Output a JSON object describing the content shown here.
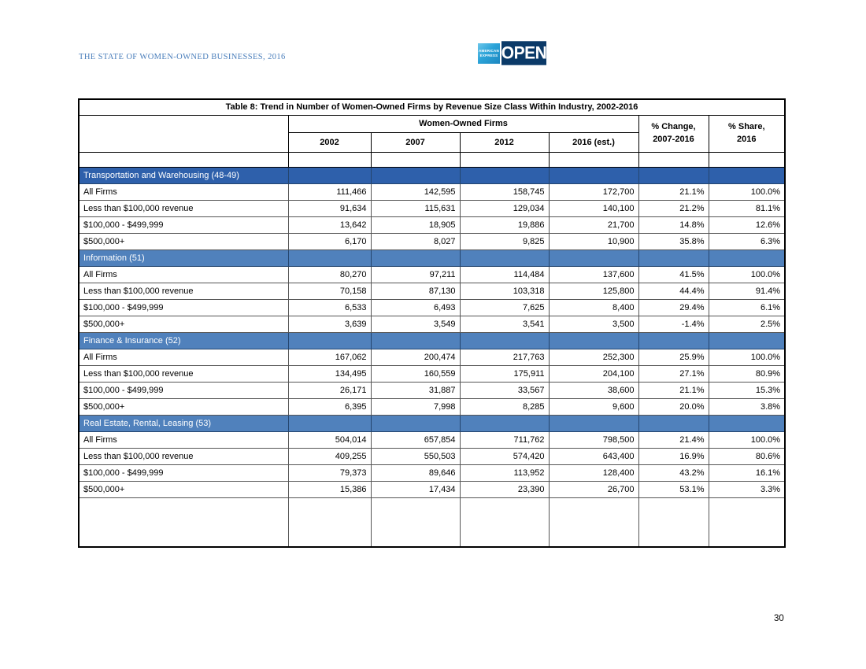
{
  "page": {
    "header_title": "THE STATE OF WOMEN-OWNED BUSINESSES, 2016",
    "page_number": "30",
    "logo": {
      "amex_line1": "AMERICAN",
      "amex_line2": "EXPRESS",
      "open_label": "OPEN"
    }
  },
  "colors": {
    "header_title_blue": "#4A7EBB",
    "section_dark_blue": "#2E60AB",
    "section_light_blue": "#5081BC",
    "amex_blue": "#2BA3D8",
    "open_navy": "#0B3A68"
  },
  "table": {
    "title": "Table 8: Trend in Number of Women-Owned Firms by Revenue Size Class Within Industry, 2002-2016",
    "group_header": "Women-Owned Firms",
    "year_headers": [
      "2002",
      "2007",
      "2012",
      "2016 (est.)"
    ],
    "pct_change_header": "% Change,\n2007-2016",
    "pct_share_header": "% Share,\n2016",
    "sections": [
      {
        "label": "Transportation and Warehousing (48-49)",
        "accent": "dark",
        "rows": [
          [
            "All Firms",
            "111,466",
            "142,595",
            "158,745",
            "172,700",
            "21.1%",
            "100.0%"
          ],
          [
            "Less than $100,000 revenue",
            "91,634",
            "115,631",
            "129,034",
            "140,100",
            "21.2%",
            "81.1%"
          ],
          [
            "$100,000 - $499,999",
            "13,642",
            "18,905",
            "19,886",
            "21,700",
            "14.8%",
            "12.6%"
          ],
          [
            "$500,000+",
            "6,170",
            "8,027",
            "9,825",
            "10,900",
            "35.8%",
            "6.3%"
          ]
        ]
      },
      {
        "label": "Information (51)",
        "accent": "light",
        "rows": [
          [
            "All Firms",
            "80,270",
            "97,211",
            "114,484",
            "137,600",
            "41.5%",
            "100.0%"
          ],
          [
            "Less than $100,000 revenue",
            "70,158",
            "87,130",
            "103,318",
            "125,800",
            "44.4%",
            "91.4%"
          ],
          [
            "$100,000 - $499,999",
            "6,533",
            "6,493",
            "7,625",
            "8,400",
            "29.4%",
            "6.1%"
          ],
          [
            "$500,000+",
            "3,639",
            "3,549",
            "3,541",
            "3,500",
            "-1.4%",
            "2.5%"
          ]
        ]
      },
      {
        "label": "Finance & Insurance (52)",
        "accent": "light",
        "rows": [
          [
            "All Firms",
            "167,062",
            "200,474",
            "217,763",
            "252,300",
            "25.9%",
            "100.0%"
          ],
          [
            "Less than $100,000 revenue",
            "134,495",
            "160,559",
            "175,911",
            "204,100",
            "27.1%",
            "80.9%"
          ],
          [
            "$100,000 - $499,999",
            "26,171",
            "31,887",
            "33,567",
            "38,600",
            "21.1%",
            "15.3%"
          ],
          [
            "$500,000+",
            "6,395",
            "7,998",
            "8,285",
            "9,600",
            "20.0%",
            "3.8%"
          ]
        ]
      },
      {
        "label": "Real Estate, Rental, Leasing (53)",
        "accent": "light",
        "rows": [
          [
            "All Firms",
            "504,014",
            "657,854",
            "711,762",
            "798,500",
            "21.4%",
            "100.0%"
          ],
          [
            "Less than $100,000 revenue",
            "409,255",
            "550,503",
            "574,420",
            "643,400",
            "16.9%",
            "80.6%"
          ],
          [
            "$100,000 - $499,999",
            "79,373",
            "89,646",
            "113,952",
            "128,400",
            "43.2%",
            "16.1%"
          ],
          [
            "$500,000+",
            "15,386",
            "17,434",
            "23,390",
            "26,700",
            "53.1%",
            "3.3%"
          ]
        ]
      }
    ]
  }
}
